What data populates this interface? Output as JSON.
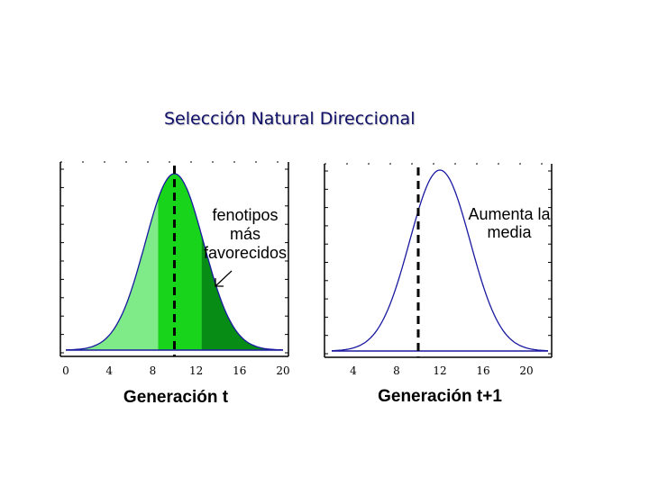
{
  "title": "Selección Natural Direccional",
  "chart_data": [
    {
      "type": "area",
      "xlabel": "Generación t",
      "xticks": [
        0,
        4,
        8,
        12,
        16,
        20
      ],
      "xlim": [
        0,
        20
      ],
      "mean": 10,
      "sd": 2.7,
      "mean_line": 10,
      "shaded_regions": [
        {
          "from": 0,
          "to": 8.5,
          "color": "#7eea88"
        },
        {
          "from": 8.5,
          "to": 12.5,
          "color": "#18d41a"
        },
        {
          "from": 12.5,
          "to": 20,
          "color": "#078d15"
        }
      ],
      "annotation": [
        "fenotipos",
        "más",
        "favorecidos"
      ],
      "line_color": "#1a1aa0"
    },
    {
      "type": "line",
      "xlabel": "Generación t+1",
      "xticks": [
        4,
        8,
        12,
        16,
        20
      ],
      "xlim": [
        2,
        22
      ],
      "mean": 12,
      "sd": 2.8,
      "mean_line": 10,
      "annotation": [
        "Aumenta la",
        "media"
      ],
      "line_color": "#1a1aa0"
    }
  ]
}
